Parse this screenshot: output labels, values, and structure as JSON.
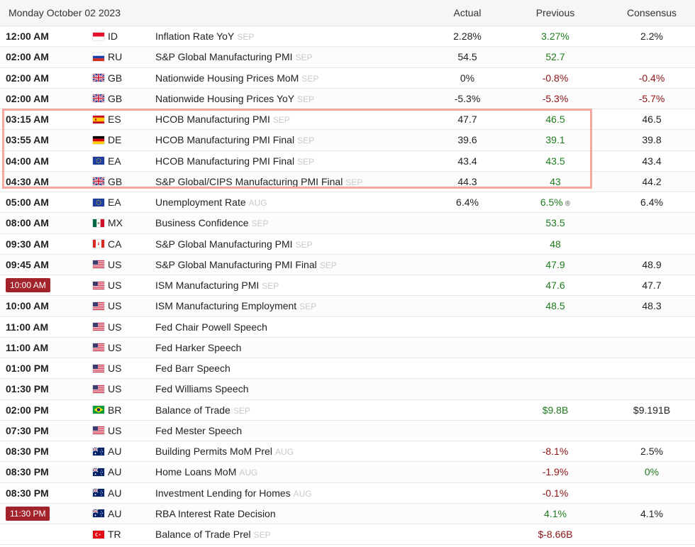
{
  "header": {
    "date": "Monday October 02 2023",
    "actual_label": "Actual",
    "previous_label": "Previous",
    "consensus_label": "Consensus"
  },
  "colors": {
    "positive": "#1f7a1f",
    "negative": "#8b1313",
    "live_time_bg": "#a3232b",
    "highlight_border": "#f4a89f"
  },
  "rows": [
    {
      "time": "12:00 AM",
      "country": "ID",
      "event": "Inflation Rate YoY",
      "ref": "SEP",
      "actual": "2.28%",
      "previous": "3.27%",
      "previous_color": "green",
      "consensus": "2.2%",
      "consensus_color": "black",
      "flag": "flag-id-icon"
    },
    {
      "time": "02:00 AM",
      "country": "RU",
      "event": "S&P Global Manufacturing PMI",
      "ref": "SEP",
      "actual": "54.5",
      "previous": "52.7",
      "previous_color": "green",
      "consensus": "",
      "consensus_color": "black",
      "flag": "flag-ru-icon"
    },
    {
      "time": "02:00 AM",
      "country": "GB",
      "event": "Nationwide Housing Prices MoM",
      "ref": "SEP",
      "actual": "0%",
      "previous": "-0.8%",
      "previous_color": "red",
      "consensus": "-0.4%",
      "consensus_color": "red",
      "flag": "flag-gb-icon"
    },
    {
      "time": "02:00 AM",
      "country": "GB",
      "event": "Nationwide Housing Prices YoY",
      "ref": "SEP",
      "actual": "-5.3%",
      "previous": "-5.3%",
      "previous_color": "red",
      "consensus": "-5.7%",
      "consensus_color": "red",
      "flag": "flag-gb-icon"
    },
    {
      "time": "03:15 AM",
      "country": "ES",
      "event": "HCOB Manufacturing PMI",
      "ref": "SEP",
      "actual": "47.7",
      "previous": "46.5",
      "previous_color": "green",
      "consensus": "46.5",
      "consensus_color": "black",
      "flag": "flag-es-icon"
    },
    {
      "time": "03:55 AM",
      "country": "DE",
      "event": "HCOB Manufacturing PMI Final",
      "ref": "SEP",
      "actual": "39.6",
      "previous": "39.1",
      "previous_color": "green",
      "consensus": "39.8",
      "consensus_color": "black",
      "flag": "flag-de-icon"
    },
    {
      "time": "04:00 AM",
      "country": "EA",
      "event": "HCOB Manufacturing PMI Final",
      "ref": "SEP",
      "actual": "43.4",
      "previous": "43.5",
      "previous_color": "green",
      "consensus": "43.4",
      "consensus_color": "black",
      "flag": "flag-eu-icon"
    },
    {
      "time": "04:30 AM",
      "country": "GB",
      "event": "S&P Global/CIPS Manufacturing PMI Final",
      "ref": "SEP",
      "actual": "44.3",
      "previous": "43",
      "previous_color": "green",
      "consensus": "44.2",
      "consensus_color": "black",
      "flag": "flag-gb-icon"
    },
    {
      "time": "05:00 AM",
      "country": "EA",
      "event": "Unemployment Rate",
      "ref": "AUG",
      "actual": "6.4%",
      "previous": "6.5%",
      "previous_color": "green",
      "previous_mark": "®",
      "consensus": "6.4%",
      "consensus_color": "black",
      "flag": "flag-eu-icon"
    },
    {
      "time": "08:00 AM",
      "country": "MX",
      "event": "Business Confidence",
      "ref": "SEP",
      "actual": "",
      "previous": "53.5",
      "previous_color": "green",
      "consensus": "",
      "consensus_color": "black",
      "flag": "flag-mx-icon"
    },
    {
      "time": "09:30 AM",
      "country": "CA",
      "event": "S&P Global Manufacturing PMI",
      "ref": "SEP",
      "actual": "",
      "previous": "48",
      "previous_color": "green",
      "consensus": "",
      "consensus_color": "black",
      "flag": "flag-ca-icon"
    },
    {
      "time": "09:45 AM",
      "country": "US",
      "event": "S&P Global Manufacturing PMI Final",
      "ref": "SEP",
      "actual": "",
      "previous": "47.9",
      "previous_color": "green",
      "consensus": "48.9",
      "consensus_color": "black",
      "flag": "flag-us-icon"
    },
    {
      "time": "10:00 AM",
      "live": true,
      "country": "US",
      "event": "ISM Manufacturing PMI",
      "ref": "SEP",
      "actual": "",
      "previous": "47.6",
      "previous_color": "green",
      "consensus": "47.7",
      "consensus_color": "black",
      "flag": "flag-us-icon"
    },
    {
      "time": "10:00 AM",
      "country": "US",
      "event": "ISM Manufacturing Employment",
      "ref": "SEP",
      "actual": "",
      "previous": "48.5",
      "previous_color": "green",
      "consensus": "48.3",
      "consensus_color": "black",
      "flag": "flag-us-icon"
    },
    {
      "time": "11:00 AM",
      "country": "US",
      "event": "Fed Chair Powell Speech",
      "ref": "",
      "actual": "",
      "previous": "",
      "previous_color": "green",
      "consensus": "",
      "consensus_color": "black",
      "flag": "flag-us-icon"
    },
    {
      "time": "11:00 AM",
      "country": "US",
      "event": "Fed Harker Speech",
      "ref": "",
      "actual": "",
      "previous": "",
      "previous_color": "green",
      "consensus": "",
      "consensus_color": "black",
      "flag": "flag-us-icon"
    },
    {
      "time": "01:00 PM",
      "country": "US",
      "event": "Fed Barr Speech",
      "ref": "",
      "actual": "",
      "previous": "",
      "previous_color": "green",
      "consensus": "",
      "consensus_color": "black",
      "flag": "flag-us-icon"
    },
    {
      "time": "01:30 PM",
      "country": "US",
      "event": "Fed Williams Speech",
      "ref": "",
      "actual": "",
      "previous": "",
      "previous_color": "green",
      "consensus": "",
      "consensus_color": "black",
      "flag": "flag-us-icon"
    },
    {
      "time": "02:00 PM",
      "country": "BR",
      "event": "Balance of Trade",
      "ref": "SEP",
      "actual": "",
      "previous": "$9.8B",
      "previous_color": "green",
      "consensus": "$9.191B",
      "consensus_color": "black",
      "flag": "flag-br-icon"
    },
    {
      "time": "07:30 PM",
      "country": "US",
      "event": "Fed Mester Speech",
      "ref": "",
      "actual": "",
      "previous": "",
      "previous_color": "green",
      "consensus": "",
      "consensus_color": "black",
      "flag": "flag-us-icon"
    },
    {
      "time": "08:30 PM",
      "country": "AU",
      "event": "Building Permits MoM Prel",
      "ref": "AUG",
      "actual": "",
      "previous": "-8.1%",
      "previous_color": "red",
      "consensus": "2.5%",
      "consensus_color": "black",
      "flag": "flag-au-icon"
    },
    {
      "time": "08:30 PM",
      "country": "AU",
      "event": "Home Loans MoM",
      "ref": "AUG",
      "actual": "",
      "previous": "-1.9%",
      "previous_color": "red",
      "consensus": "0%",
      "consensus_color": "green",
      "flag": "flag-au-icon"
    },
    {
      "time": "08:30 PM",
      "country": "AU",
      "event": "Investment Lending for Homes",
      "ref": "AUG",
      "actual": "",
      "previous": "-0.1%",
      "previous_color": "red",
      "consensus": "",
      "consensus_color": "black",
      "flag": "flag-au-icon"
    },
    {
      "time": "11:30 PM",
      "live": true,
      "country": "AU",
      "event": "RBA Interest Rate Decision",
      "ref": "",
      "actual": "",
      "previous": "4.1%",
      "previous_color": "green",
      "consensus": "4.1%",
      "consensus_color": "black",
      "flag": "flag-au-icon"
    },
    {
      "time": "",
      "country": "TR",
      "event": "Balance of Trade Prel",
      "ref": "SEP",
      "actual": "",
      "previous": "$-8.66B",
      "previous_color": "red",
      "consensus": "",
      "consensus_color": "black",
      "flag": "flag-tr-icon"
    }
  ]
}
